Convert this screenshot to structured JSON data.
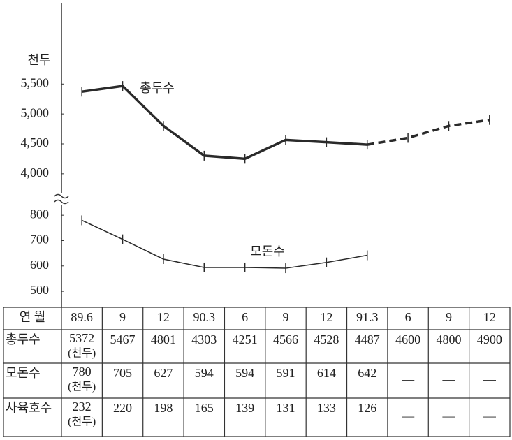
{
  "chart_data": [
    {
      "type": "line",
      "ylabel": "천두",
      "categories": [
        "89.6",
        "9",
        "12",
        "90.3",
        "6",
        "9",
        "12",
        "91.3",
        "6",
        "9",
        "12"
      ],
      "series": [
        {
          "name": "총두수",
          "color": "#2a2a2a",
          "values": [
            5372,
            5467,
            4801,
            4303,
            4251,
            4566,
            4528,
            4487,
            4600,
            4800,
            4900
          ],
          "dashed_from": 7
        }
      ],
      "ylim": [
        3800,
        5900
      ],
      "yticks": [
        {
          "value": 4000,
          "label": "4,000"
        },
        {
          "value": 4500,
          "label": "4,500"
        },
        {
          "value": 5000,
          "label": "5,000"
        },
        {
          "value": 5500,
          "label": "5,500"
        }
      ]
    },
    {
      "type": "line",
      "series": [
        {
          "name": "모돈수",
          "color": "#2a2a2a",
          "values": [
            780,
            705,
            627,
            594,
            594,
            591,
            614,
            642,
            null,
            null,
            null
          ]
        }
      ],
      "ylim": [
        470,
        850
      ],
      "yticks": [
        500,
        600,
        700,
        800
      ]
    }
  ],
  "table": {
    "header": "연 월",
    "unit_note": "(천두)",
    "empty_mark": "—",
    "extra_rows": [
      {
        "label": "사육호수",
        "values": [
          232,
          220,
          198,
          165,
          139,
          131,
          133,
          126,
          null,
          null,
          null
        ]
      }
    ]
  }
}
